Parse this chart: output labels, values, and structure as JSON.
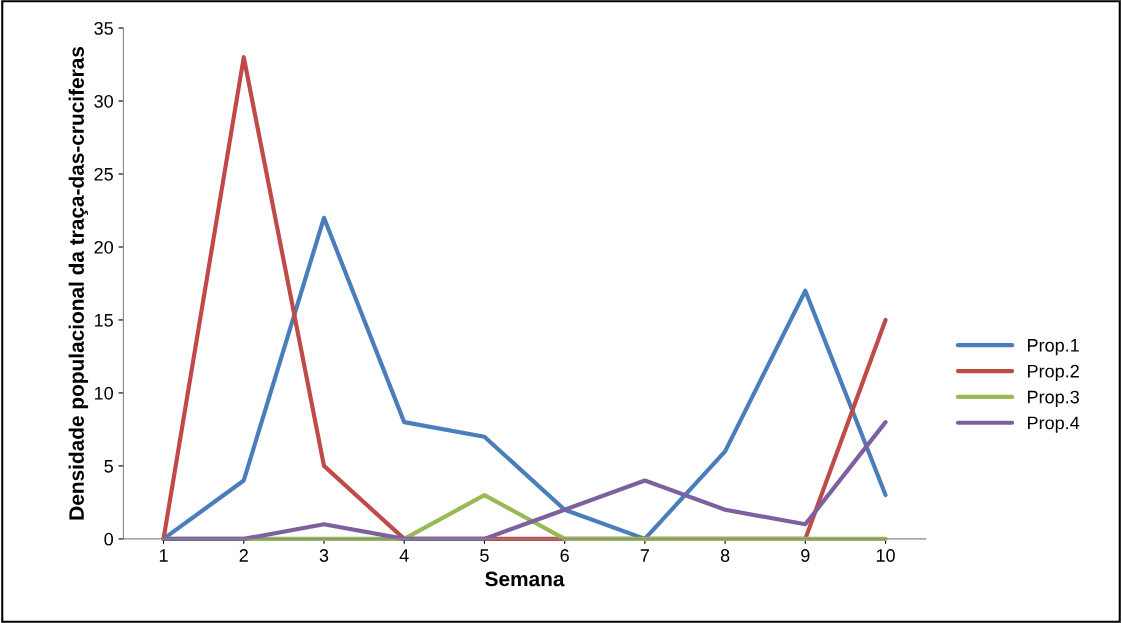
{
  "chart_data": {
    "type": "line",
    "xlabel": "Semana",
    "ylabel": "Densidade populacional da traça-das-cruciferas",
    "categories": [
      "1",
      "2",
      "3",
      "4",
      "5",
      "6",
      "7",
      "8",
      "9",
      "10"
    ],
    "series": [
      {
        "name": "Prop.1",
        "color": "#4a7ebb",
        "values": [
          0,
          4,
          22,
          8,
          7,
          2,
          0,
          6,
          17,
          3
        ]
      },
      {
        "name": "Prop.2",
        "color": "#be4b48",
        "values": [
          0,
          33,
          5,
          0,
          0,
          0,
          0,
          0,
          0,
          15
        ]
      },
      {
        "name": "Prop.3",
        "color": "#98b954",
        "values": [
          0,
          0,
          0,
          0,
          3,
          0,
          0,
          0,
          0,
          0
        ]
      },
      {
        "name": "Prop.4",
        "color": "#7d60a0",
        "values": [
          0,
          0,
          1,
          0,
          0,
          2,
          4,
          2,
          1,
          8
        ]
      }
    ],
    "ylim": [
      0,
      35
    ],
    "yticks": [
      0,
      5,
      10,
      15,
      20,
      25,
      30,
      35
    ],
    "grid": false,
    "legend": "right",
    "marker": "none",
    "line_style": "solid"
  }
}
